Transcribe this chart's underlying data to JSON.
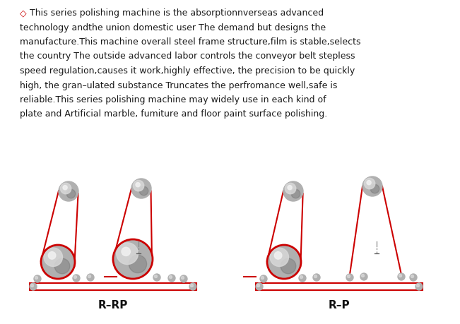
{
  "background_color": "#ffffff",
  "text_color": "#1a1a1a",
  "red_color": "#cc0000",
  "paragraph_line1": "◇This series polishing machine is the absorptionnverseas advanced",
  "paragraph_lines": [
    "technology andthe union domestic user The demand but designs the",
    "manufacture.This machine overall steel frame structure,film is stable,selects",
    "the country The outside advanced labor controls the conveyor belt stepless",
    "speed regulation,causes it work,highly effective, the precision to be quickly",
    "high, the gran–ulated substance Truncates the perfromance well,safe is",
    "reliable.This series polishing machine may widely use in each kind of",
    "plate and Artificial marble, fumiture and floor paint surface polishing."
  ],
  "label_rrp": "R–RP",
  "label_rp": "R–P",
  "text_fontsize": 9.0,
  "label_fontsize": 11,
  "fig_width": 6.51,
  "fig_height": 4.6,
  "dpi": 100
}
